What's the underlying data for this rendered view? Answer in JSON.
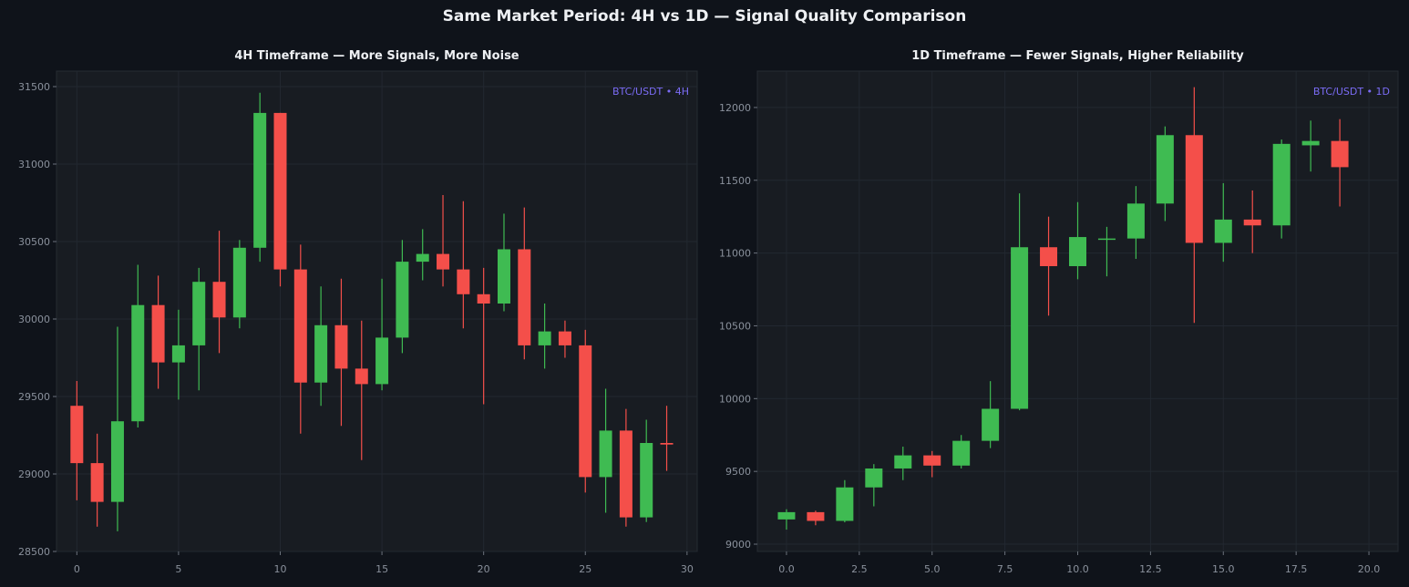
{
  "title": "Same Market Period: 4H vs 1D — Signal Quality Comparison",
  "colors": {
    "up": "#3fbb52",
    "down": "#f44f4a",
    "background": "#0f131a",
    "panel": "#181c22",
    "grid": "#222830",
    "watermark": "#7b6cf6"
  },
  "chart_data": [
    {
      "type": "candlestick",
      "title": "4H Timeframe — More Signals, More Noise",
      "watermark": "BTC/USDT • 4H",
      "xlim": [
        -1,
        30.5
      ],
      "ylim": [
        28500,
        31600
      ],
      "xticks": [
        0,
        5,
        10,
        15,
        20,
        25,
        30
      ],
      "yticks": [
        28500,
        29000,
        29500,
        30000,
        30500,
        31000,
        31500
      ],
      "grid": true,
      "candles": [
        {
          "x": 0,
          "open": 29440,
          "high": 29600,
          "low": 28830,
          "close": 29070
        },
        {
          "x": 1,
          "open": 29070,
          "high": 29260,
          "low": 28660,
          "close": 28820
        },
        {
          "x": 2,
          "open": 28820,
          "high": 29950,
          "low": 28630,
          "close": 29340
        },
        {
          "x": 3,
          "open": 29340,
          "high": 30350,
          "low": 29300,
          "close": 30090
        },
        {
          "x": 4,
          "open": 30090,
          "high": 30280,
          "low": 29550,
          "close": 29720
        },
        {
          "x": 5,
          "open": 29720,
          "high": 30060,
          "low": 29480,
          "close": 29830
        },
        {
          "x": 6,
          "open": 29830,
          "high": 30330,
          "low": 29540,
          "close": 30240
        },
        {
          "x": 7,
          "open": 30240,
          "high": 30570,
          "low": 29780,
          "close": 30010
        },
        {
          "x": 8,
          "open": 30010,
          "high": 30510,
          "low": 29940,
          "close": 30460
        },
        {
          "x": 9,
          "open": 30460,
          "high": 31460,
          "low": 30370,
          "close": 31330
        },
        {
          "x": 10,
          "open": 31330,
          "high": 31330,
          "low": 30210,
          "close": 30320
        },
        {
          "x": 11,
          "open": 30320,
          "high": 30480,
          "low": 29260,
          "close": 29590
        },
        {
          "x": 12,
          "open": 29590,
          "high": 30210,
          "low": 29440,
          "close": 29960
        },
        {
          "x": 13,
          "open": 29960,
          "high": 30260,
          "low": 29310,
          "close": 29680
        },
        {
          "x": 14,
          "open": 29680,
          "high": 29990,
          "low": 29090,
          "close": 29580
        },
        {
          "x": 15,
          "open": 29580,
          "high": 30260,
          "low": 29540,
          "close": 29880
        },
        {
          "x": 16,
          "open": 29880,
          "high": 30510,
          "low": 29780,
          "close": 30370
        },
        {
          "x": 17,
          "open": 30370,
          "high": 30580,
          "low": 30250,
          "close": 30420
        },
        {
          "x": 18,
          "open": 30420,
          "high": 30800,
          "low": 30210,
          "close": 30320
        },
        {
          "x": 19,
          "open": 30320,
          "high": 30760,
          "low": 29940,
          "close": 30160
        },
        {
          "x": 20,
          "open": 30160,
          "high": 30330,
          "low": 29450,
          "close": 30100
        },
        {
          "x": 21,
          "open": 30100,
          "high": 30680,
          "low": 30050,
          "close": 30450
        },
        {
          "x": 22,
          "open": 30450,
          "high": 30720,
          "low": 29740,
          "close": 29830
        },
        {
          "x": 23,
          "open": 29830,
          "high": 30100,
          "low": 29680,
          "close": 29920
        },
        {
          "x": 24,
          "open": 29920,
          "high": 29990,
          "low": 29750,
          "close": 29830
        },
        {
          "x": 25,
          "open": 29830,
          "high": 29930,
          "low": 28880,
          "close": 28980
        },
        {
          "x": 26,
          "open": 28980,
          "high": 29550,
          "low": 28750,
          "close": 29280
        },
        {
          "x": 27,
          "open": 29280,
          "high": 29420,
          "low": 28660,
          "close": 28720
        },
        {
          "x": 28,
          "open": 28720,
          "high": 29350,
          "low": 28690,
          "close": 29200
        },
        {
          "x": 29,
          "open": 29200,
          "high": 29440,
          "low": 29020,
          "close": 29190
        }
      ]
    },
    {
      "type": "candlestick",
      "title": "1D Timeframe — Fewer Signals, Higher Reliability",
      "watermark": "BTC/USDT • 1D",
      "xlim": [
        -1,
        21
      ],
      "ylim": [
        8950,
        12250
      ],
      "xticks": [
        0.0,
        2.5,
        5.0,
        7.5,
        10.0,
        12.5,
        15.0,
        17.5,
        20.0
      ],
      "yticks": [
        9000,
        9500,
        10000,
        10500,
        11000,
        11500,
        12000
      ],
      "grid": true,
      "candles": [
        {
          "x": 0,
          "open": 9170,
          "high": 9240,
          "low": 9100,
          "close": 9220
        },
        {
          "x": 1,
          "open": 9220,
          "high": 9230,
          "low": 9130,
          "close": 9160
        },
        {
          "x": 2,
          "open": 9160,
          "high": 9440,
          "low": 9150,
          "close": 9390
        },
        {
          "x": 3,
          "open": 9390,
          "high": 9550,
          "low": 9260,
          "close": 9520
        },
        {
          "x": 4,
          "open": 9520,
          "high": 9670,
          "low": 9440,
          "close": 9610
        },
        {
          "x": 5,
          "open": 9610,
          "high": 9640,
          "low": 9460,
          "close": 9540
        },
        {
          "x": 6,
          "open": 9540,
          "high": 9750,
          "low": 9520,
          "close": 9710
        },
        {
          "x": 7,
          "open": 9710,
          "high": 10120,
          "low": 9660,
          "close": 9930
        },
        {
          "x": 8,
          "open": 9930,
          "high": 11410,
          "low": 9920,
          "close": 11040
        },
        {
          "x": 9,
          "open": 11040,
          "high": 11250,
          "low": 10570,
          "close": 10910
        },
        {
          "x": 10,
          "open": 10910,
          "high": 11350,
          "low": 10820,
          "close": 11110
        },
        {
          "x": 11,
          "open": 11100,
          "high": 11180,
          "low": 10840,
          "close": 11100
        },
        {
          "x": 12,
          "open": 11100,
          "high": 11460,
          "low": 10960,
          "close": 11340
        },
        {
          "x": 13,
          "open": 11340,
          "high": 11870,
          "low": 11220,
          "close": 11810
        },
        {
          "x": 14,
          "open": 11810,
          "high": 12140,
          "low": 10520,
          "close": 11070
        },
        {
          "x": 15,
          "open": 11070,
          "high": 11480,
          "low": 10940,
          "close": 11230
        },
        {
          "x": 16,
          "open": 11230,
          "high": 11430,
          "low": 11000,
          "close": 11190
        },
        {
          "x": 17,
          "open": 11190,
          "high": 11780,
          "low": 11100,
          "close": 11750
        },
        {
          "x": 18,
          "open": 11740,
          "high": 11910,
          "low": 11560,
          "close": 11770
        },
        {
          "x": 19,
          "open": 11770,
          "high": 11920,
          "low": 11320,
          "close": 11590
        }
      ]
    }
  ]
}
